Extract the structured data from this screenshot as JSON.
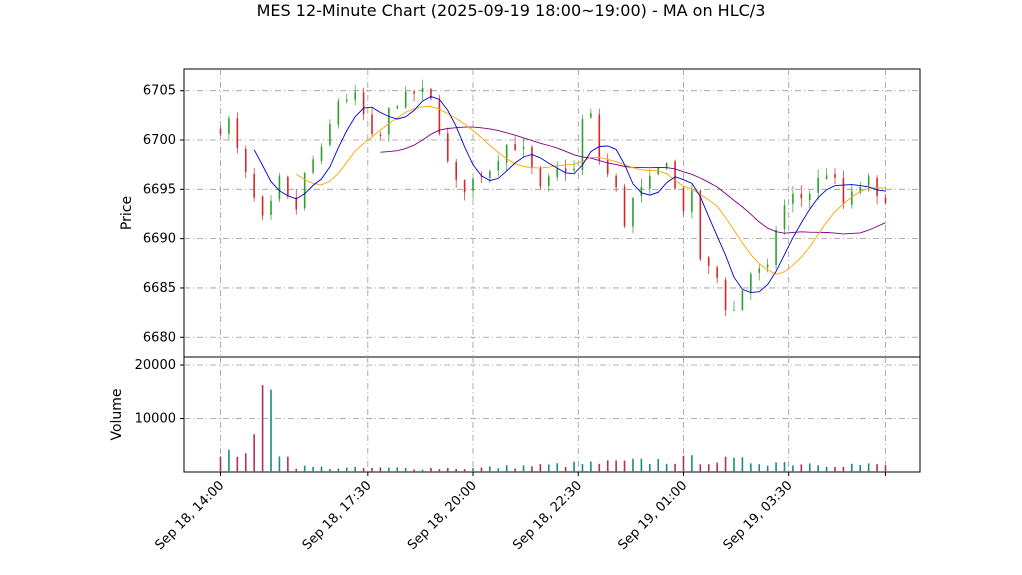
{
  "title": "MES 12-Minute Chart (2025-09-19 18:00~19:00) - MA on HLC/3",
  "chart_data": [
    {
      "type": "candlestick",
      "ylabel": "Price",
      "ylim": [
        6678,
        6707.2
      ],
      "yticks": [
        6680,
        6685,
        6690,
        6695,
        6700,
        6705
      ],
      "grid": true,
      "colors": {
        "up": "#2ca02c",
        "down": "#d62728",
        "ma_fast": "#0000cc",
        "ma_mid": "#ffa500",
        "ma_slow": "#800080"
      },
      "close_anchors": [
        [
          "2025-09-18 14:00",
          6701.0
        ],
        [
          "2025-09-18 14:12",
          6702.0
        ],
        [
          "2025-09-18 14:24",
          6699.0
        ],
        [
          "2025-09-18 14:36",
          6696.5
        ],
        [
          "2025-09-18 14:48",
          6694.0
        ],
        [
          "2025-09-18 15:00",
          6692.0
        ],
        [
          "2025-09-18 15:12",
          6693.5
        ],
        [
          "2025-09-18 15:24",
          6696.0
        ],
        [
          "2025-09-18 15:36",
          6694.0
        ],
        [
          "2025-09-18 15:48",
          6693.0
        ],
        [
          "2025-09-18 16:00",
          6696.5
        ],
        [
          "2025-09-18 16:12",
          6698.0
        ],
        [
          "2025-09-18 16:24",
          6699.0
        ],
        [
          "2025-09-18 16:48",
          6704.0
        ],
        [
          "2025-09-18 17:12",
          6704.5
        ],
        [
          "2025-09-18 17:30",
          6701.5
        ],
        [
          "2025-09-18 17:42",
          6699.0
        ],
        [
          "2025-09-18 18:00",
          6703.0
        ],
        [
          "2025-09-18 18:24",
          6704.5
        ],
        [
          "2025-09-18 18:48",
          6705.0
        ],
        [
          "2025-09-18 19:00",
          6704.0
        ],
        [
          "2025-09-18 19:12",
          6701.0
        ],
        [
          "2025-09-18 19:30",
          6696.0
        ],
        [
          "2025-09-18 19:48",
          6695.0
        ],
        [
          "2025-09-18 20:00",
          6696.0
        ],
        [
          "2025-09-18 20:24",
          6697.0
        ],
        [
          "2025-09-18 20:48",
          6699.5
        ],
        [
          "2025-09-18 21:12",
          6699.0
        ],
        [
          "2025-09-18 21:36",
          6695.0
        ],
        [
          "2025-09-18 22:00",
          6697.0
        ],
        [
          "2025-09-18 22:24",
          6697.0
        ],
        [
          "2025-09-18 22:36",
          6702.0
        ],
        [
          "2025-09-18 22:48",
          6702.5
        ],
        [
          "2025-09-18 23:00",
          6698.0
        ],
        [
          "2025-09-18 23:24",
          6695.0
        ],
        [
          "2025-09-18 23:36",
          6691.5
        ],
        [
          "2025-09-18 23:48",
          6694.0
        ],
        [
          "2025-09-19 00:12",
          6696.0
        ],
        [
          "2025-09-19 00:36",
          6698.0
        ],
        [
          "2025-09-19 00:48",
          6695.0
        ],
        [
          "2025-09-19 01:00",
          6693.0
        ],
        [
          "2025-09-19 01:12",
          6694.5
        ],
        [
          "2025-09-19 01:24",
          6688.0
        ],
        [
          "2025-09-19 01:48",
          6686.0
        ],
        [
          "2025-09-19 02:06",
          6681.5
        ],
        [
          "2025-09-19 02:18",
          6684.0
        ],
        [
          "2025-09-19 02:36",
          6686.5
        ],
        [
          "2025-09-19 03:00",
          6687.0
        ],
        [
          "2025-09-19 03:12",
          6691.0
        ],
        [
          "2025-09-19 03:30",
          6694.5
        ],
        [
          "2025-09-19 03:54",
          6694.0
        ],
        [
          "2025-09-19 04:12",
          6696.0
        ],
        [
          "2025-09-19 04:30",
          6697.0
        ],
        [
          "2025-09-19 04:48",
          6693.5
        ],
        [
          "2025-09-19 05:06",
          6695.0
        ],
        [
          "2025-09-19 05:24",
          6696.0
        ],
        [
          "2025-09-19 05:36",
          6694.0
        ],
        [
          "2025-09-19 05:48",
          6694.0
        ]
      ]
    },
    {
      "type": "bar",
      "ylabel": "Volume",
      "ylim": [
        0,
        21500
      ],
      "yticks": [
        10000,
        20000
      ],
      "grid": true,
      "volume_anchors": [
        [
          "2025-09-18 14:00",
          2500
        ],
        [
          "2025-09-18 14:48",
          5200
        ],
        [
          "2025-09-18 15:00",
          14000
        ],
        [
          "2025-09-18 15:12",
          20800
        ],
        [
          "2025-09-18 15:24",
          4200
        ],
        [
          "2025-09-18 15:48",
          1000
        ],
        [
          "2025-09-18 17:00",
          700
        ],
        [
          "2025-09-18 20:00",
          700
        ],
        [
          "2025-09-19 01:12",
          2300
        ],
        [
          "2025-09-19 05:48",
          1200
        ]
      ]
    }
  ],
  "x_ticks": [
    "Sep 18, 14:00",
    "Sep 18, 17:30",
    "Sep 18, 20:00",
    "Sep 18, 22:30",
    "Sep 19, 01:00",
    "Sep 19, 03:30"
  ]
}
